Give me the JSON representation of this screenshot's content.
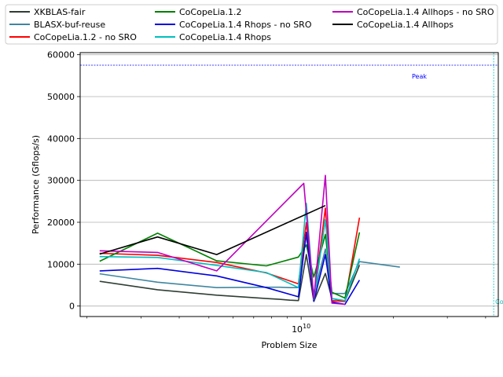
{
  "chart_data": {
    "type": "line",
    "xlabel": "Problem Size",
    "ylabel": "Performance (Gflops/s)",
    "x_scale": "log",
    "xlim": [
      1900000000.0,
      44000000000.0
    ],
    "ylim": [
      -2500,
      60500
    ],
    "x_tick_labels": [
      {
        "value": 10000000000.0,
        "label": "10^10"
      }
    ],
    "y_ticks": [
      0,
      10000,
      20000,
      30000,
      40000,
      50000,
      60000
    ],
    "grid": "horizontal",
    "legend_position": "top",
    "annotations": {
      "peak_value": 57500,
      "peak_label": "Peak",
      "vline_x": 42500000000.0,
      "vline_label": "Combi"
    },
    "series": [
      {
        "name": "XKBLAS-fair",
        "color": "#2f3e35",
        "points": [
          [
            2200000000.0,
            5900
          ],
          [
            3400000000.0,
            3900
          ],
          [
            5300000000.0,
            2600
          ],
          [
            7700000000.0,
            1800
          ],
          [
            8500000000.0,
            1600
          ],
          [
            9200000000.0,
            1400
          ],
          [
            9800000000.0,
            1300
          ],
          [
            10400000000.0,
            12300
          ],
          [
            11000000000.0,
            1100
          ],
          [
            12000000000.0,
            7800
          ],
          [
            12600000000.0,
            1800
          ],
          [
            13900000000.0,
            1200
          ],
          [
            15500000000.0,
            9800
          ]
        ]
      },
      {
        "name": "BLASX-buf-reuse",
        "color": "#3f86a0",
        "points": [
          [
            2200000000.0,
            7700
          ],
          [
            3400000000.0,
            5700
          ],
          [
            5300000000.0,
            4400
          ],
          [
            7700000000.0,
            4500
          ],
          [
            8500000000.0,
            4500
          ],
          [
            9200000000.0,
            4400
          ],
          [
            9800000000.0,
            4400
          ],
          [
            10400000000.0,
            17000
          ],
          [
            11000000000.0,
            2600
          ],
          [
            12000000000.0,
            13600
          ],
          [
            12600000000.0,
            3000
          ],
          [
            13900000000.0,
            3000
          ],
          [
            15500000000.0,
            10600
          ],
          [
            21000000000.0,
            9300
          ]
        ]
      },
      {
        "name": "CoCopeLia.1.2 - no SRO",
        "color": "#ff0000",
        "points": [
          [
            2200000000.0,
            12600
          ],
          [
            3400000000.0,
            12100
          ],
          [
            5300000000.0,
            10400
          ],
          [
            7700000000.0,
            7900
          ],
          [
            9800000000.0,
            5300
          ],
          [
            10400000000.0,
            19900
          ],
          [
            11000000000.0,
            1600
          ],
          [
            12000000000.0,
            23400
          ],
          [
            12600000000.0,
            1300
          ],
          [
            13900000000.0,
            1100
          ],
          [
            15500000000.0,
            21100
          ]
        ]
      },
      {
        "name": "CoCopeLia.1.2",
        "color": "#008000",
        "points": [
          [
            2200000000.0,
            10700
          ],
          [
            3400000000.0,
            17400
          ],
          [
            5300000000.0,
            10800
          ],
          [
            7700000000.0,
            9600
          ],
          [
            9800000000.0,
            11700
          ],
          [
            10400000000.0,
            14600
          ],
          [
            11000000000.0,
            6900
          ],
          [
            12000000000.0,
            17100
          ],
          [
            12600000000.0,
            3300
          ],
          [
            13900000000.0,
            1900
          ],
          [
            15500000000.0,
            17600
          ]
        ]
      },
      {
        "name": "CoCopeLia.1.4 Rhops - no SRO",
        "color": "#0000dd",
        "points": [
          [
            2200000000.0,
            8400
          ],
          [
            3400000000.0,
            9000
          ],
          [
            5300000000.0,
            7200
          ],
          [
            7700000000.0,
            4400
          ],
          [
            9800000000.0,
            2200
          ],
          [
            10400000000.0,
            17600
          ],
          [
            11000000000.0,
            1200
          ],
          [
            12000000000.0,
            12300
          ],
          [
            12600000000.0,
            1000
          ],
          [
            13900000000.0,
            400
          ],
          [
            15500000000.0,
            6200
          ]
        ]
      },
      {
        "name": "CoCopeLia.1.4 Rhops",
        "color": "#00bfbf",
        "points": [
          [
            2200000000.0,
            11800
          ],
          [
            3400000000.0,
            11600
          ],
          [
            5300000000.0,
            9700
          ],
          [
            7700000000.0,
            8000
          ],
          [
            9800000000.0,
            4400
          ],
          [
            10400000000.0,
            24500
          ],
          [
            11000000000.0,
            1600
          ],
          [
            12000000000.0,
            20600
          ],
          [
            12600000000.0,
            1800
          ],
          [
            13900000000.0,
            1300
          ],
          [
            15500000000.0,
            11300
          ]
        ]
      },
      {
        "name": "CoCopeLia.1.4 Allhops - no SRO",
        "color": "#bf00bf",
        "points": [
          [
            2200000000.0,
            13200
          ],
          [
            3400000000.0,
            12800
          ],
          [
            5300000000.0,
            8400
          ],
          [
            10200000000.0,
            29300
          ],
          [
            11000000000.0,
            1800
          ],
          [
            12000000000.0,
            31200
          ],
          [
            12600000000.0,
            700
          ],
          [
            13900000000.0,
            400
          ]
        ]
      },
      {
        "name": "CoCopeLia.1.4 Allhops",
        "color": "#000000",
        "points": [
          [
            2200000000.0,
            12400
          ],
          [
            3400000000.0,
            16500
          ],
          [
            5300000000.0,
            12300
          ],
          [
            12000000000.0,
            24000
          ]
        ]
      }
    ]
  }
}
